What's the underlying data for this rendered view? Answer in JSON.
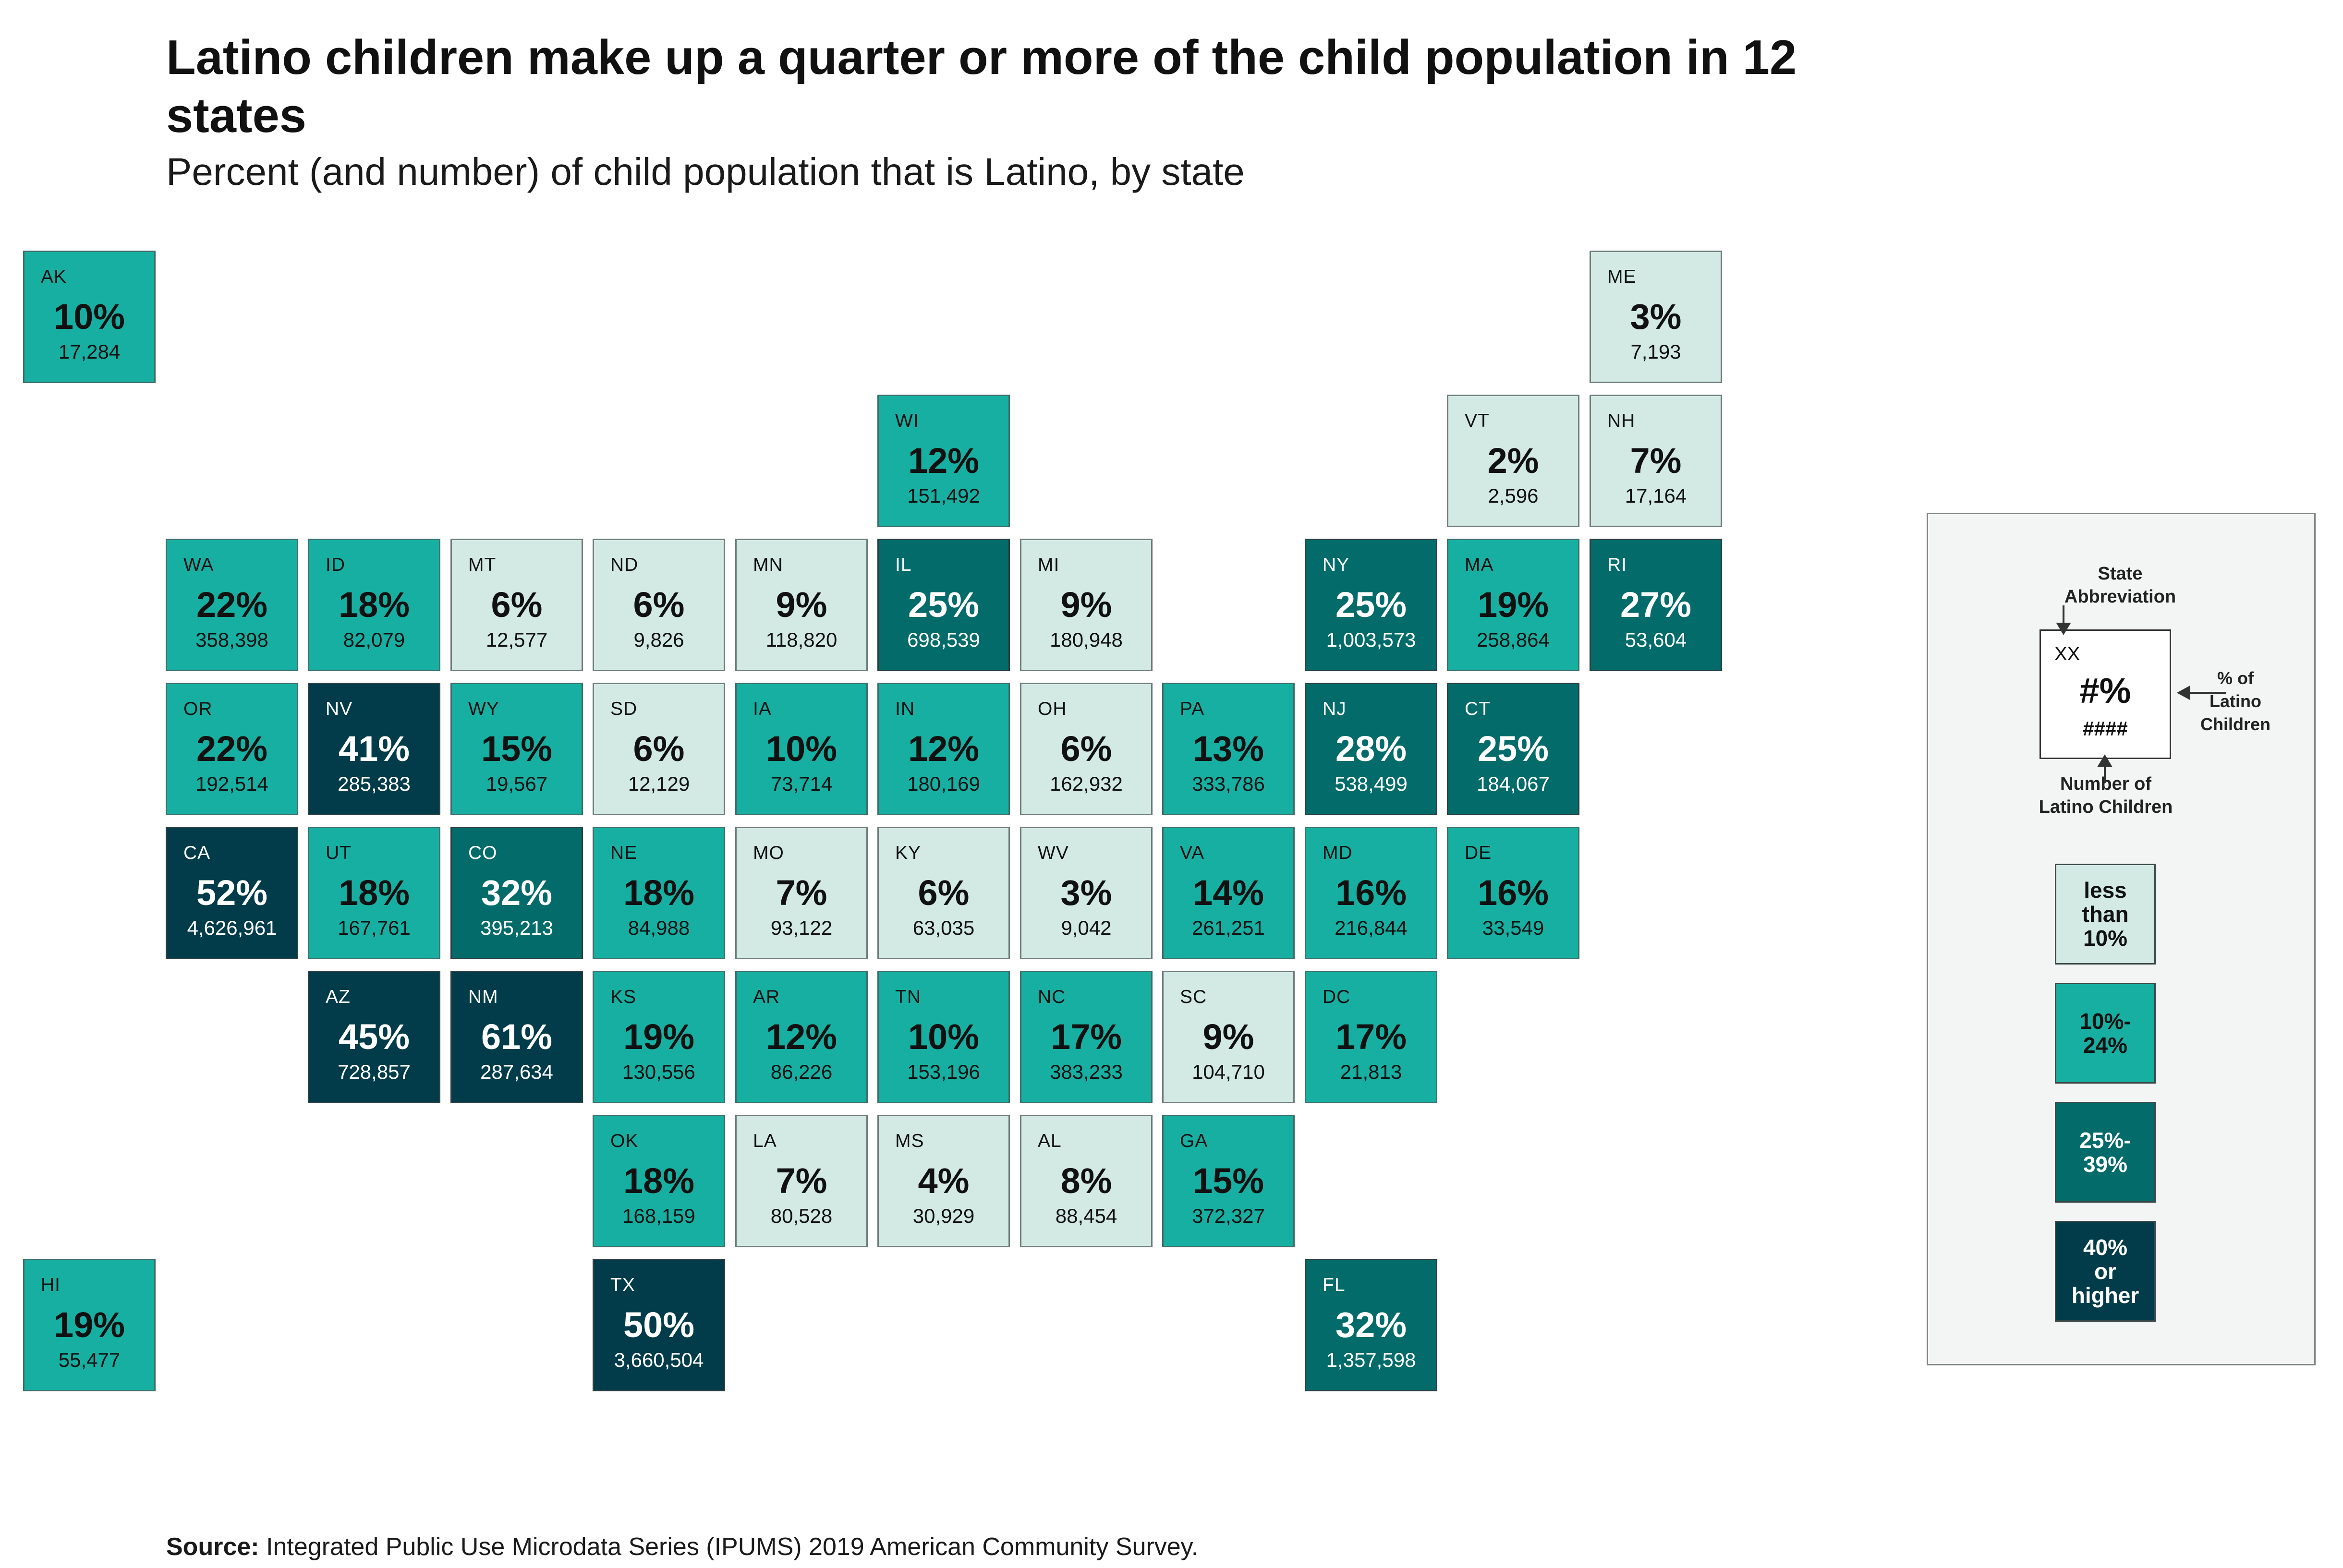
{
  "title": "Latino children make up a quarter or more of the child population in 12 states",
  "subtitle": "Percent (and number) of child population that is Latino, by state",
  "source": {
    "label": "Source:",
    "text": "Integrated Public Use Microdata Series (IPUMS) 2019 American Community Survey."
  },
  "colors": {
    "lt10": "#d3e9e4",
    "b10_24": "#17afa1",
    "b25_39": "#036b6a",
    "ge40": "#023c4a"
  },
  "map_data": {
    "type": "tile_grid_map",
    "states": [
      {
        "abbr": "AK",
        "pct": "10%",
        "num": "17,284",
        "pct_value": 10,
        "count": 17284,
        "row": 0,
        "col": 0
      },
      {
        "abbr": "ME",
        "pct": "3%",
        "num": "7,193",
        "pct_value": 3,
        "count": 7193,
        "row": 0,
        "col": 11
      },
      {
        "abbr": "WI",
        "pct": "12%",
        "num": "151,492",
        "pct_value": 12,
        "count": 151492,
        "row": 1,
        "col": 6
      },
      {
        "abbr": "VT",
        "pct": "2%",
        "num": "2,596",
        "pct_value": 2,
        "count": 2596,
        "row": 1,
        "col": 10
      },
      {
        "abbr": "NH",
        "pct": "7%",
        "num": "17,164",
        "pct_value": 7,
        "count": 17164,
        "row": 1,
        "col": 11
      },
      {
        "abbr": "WA",
        "pct": "22%",
        "num": "358,398",
        "pct_value": 22,
        "count": 358398,
        "row": 2,
        "col": 1
      },
      {
        "abbr": "ID",
        "pct": "18%",
        "num": "82,079",
        "pct_value": 18,
        "count": 82079,
        "row": 2,
        "col": 2
      },
      {
        "abbr": "MT",
        "pct": "6%",
        "num": "12,577",
        "pct_value": 6,
        "count": 12577,
        "row": 2,
        "col": 3
      },
      {
        "abbr": "ND",
        "pct": "6%",
        "num": "9,826",
        "pct_value": 6,
        "count": 9826,
        "row": 2,
        "col": 4
      },
      {
        "abbr": "MN",
        "pct": "9%",
        "num": "118,820",
        "pct_value": 9,
        "count": 118820,
        "row": 2,
        "col": 5
      },
      {
        "abbr": "IL",
        "pct": "25%",
        "num": "698,539",
        "pct_value": 25,
        "count": 698539,
        "row": 2,
        "col": 6
      },
      {
        "abbr": "MI",
        "pct": "9%",
        "num": "180,948",
        "pct_value": 9,
        "count": 180948,
        "row": 2,
        "col": 7
      },
      {
        "abbr": "NY",
        "pct": "25%",
        "num": "1,003,573",
        "pct_value": 25,
        "count": 1003573,
        "row": 2,
        "col": 9
      },
      {
        "abbr": "MA",
        "pct": "19%",
        "num": "258,864",
        "pct_value": 19,
        "count": 258864,
        "row": 2,
        "col": 10
      },
      {
        "abbr": "RI",
        "pct": "27%",
        "num": "53,604",
        "pct_value": 27,
        "count": 53604,
        "row": 2,
        "col": 11
      },
      {
        "abbr": "OR",
        "pct": "22%",
        "num": "192,514",
        "pct_value": 22,
        "count": 192514,
        "row": 3,
        "col": 1
      },
      {
        "abbr": "NV",
        "pct": "41%",
        "num": "285,383",
        "pct_value": 41,
        "count": 285383,
        "row": 3,
        "col": 2
      },
      {
        "abbr": "WY",
        "pct": "15%",
        "num": "19,567",
        "pct_value": 15,
        "count": 19567,
        "row": 3,
        "col": 3
      },
      {
        "abbr": "SD",
        "pct": "6%",
        "num": "12,129",
        "pct_value": 6,
        "count": 12129,
        "row": 3,
        "col": 4
      },
      {
        "abbr": "IA",
        "pct": "10%",
        "num": "73,714",
        "pct_value": 10,
        "count": 73714,
        "row": 3,
        "col": 5
      },
      {
        "abbr": "IN",
        "pct": "12%",
        "num": "180,169",
        "pct_value": 12,
        "count": 180169,
        "row": 3,
        "col": 6
      },
      {
        "abbr": "OH",
        "pct": "6%",
        "num": "162,932",
        "pct_value": 6,
        "count": 162932,
        "row": 3,
        "col": 7
      },
      {
        "abbr": "PA",
        "pct": "13%",
        "num": "333,786",
        "pct_value": 13,
        "count": 333786,
        "row": 3,
        "col": 8
      },
      {
        "abbr": "NJ",
        "pct": "28%",
        "num": "538,499",
        "pct_value": 28,
        "count": 538499,
        "row": 3,
        "col": 9
      },
      {
        "abbr": "CT",
        "pct": "25%",
        "num": "184,067",
        "pct_value": 25,
        "count": 184067,
        "row": 3,
        "col": 10
      },
      {
        "abbr": "CA",
        "pct": "52%",
        "num": "4,626,961",
        "pct_value": 52,
        "count": 4626961,
        "row": 4,
        "col": 1
      },
      {
        "abbr": "UT",
        "pct": "18%",
        "num": "167,761",
        "pct_value": 18,
        "count": 167761,
        "row": 4,
        "col": 2
      },
      {
        "abbr": "CO",
        "pct": "32%",
        "num": "395,213",
        "pct_value": 32,
        "count": 395213,
        "row": 4,
        "col": 3
      },
      {
        "abbr": "NE",
        "pct": "18%",
        "num": "84,988",
        "pct_value": 18,
        "count": 84988,
        "row": 4,
        "col": 4
      },
      {
        "abbr": "MO",
        "pct": "7%",
        "num": "93,122",
        "pct_value": 7,
        "count": 93122,
        "row": 4,
        "col": 5
      },
      {
        "abbr": "KY",
        "pct": "6%",
        "num": "63,035",
        "pct_value": 6,
        "count": 63035,
        "row": 4,
        "col": 6
      },
      {
        "abbr": "WV",
        "pct": "3%",
        "num": "9,042",
        "pct_value": 3,
        "count": 9042,
        "row": 4,
        "col": 7
      },
      {
        "abbr": "VA",
        "pct": "14%",
        "num": "261,251",
        "pct_value": 14,
        "count": 261251,
        "row": 4,
        "col": 8
      },
      {
        "abbr": "MD",
        "pct": "16%",
        "num": "216,844",
        "pct_value": 16,
        "count": 216844,
        "row": 4,
        "col": 9
      },
      {
        "abbr": "DE",
        "pct": "16%",
        "num": "33,549",
        "pct_value": 16,
        "count": 33549,
        "row": 4,
        "col": 10
      },
      {
        "abbr": "AZ",
        "pct": "45%",
        "num": "728,857",
        "pct_value": 45,
        "count": 728857,
        "row": 5,
        "col": 2
      },
      {
        "abbr": "NM",
        "pct": "61%",
        "num": "287,634",
        "pct_value": 61,
        "count": 287634,
        "row": 5,
        "col": 3
      },
      {
        "abbr": "KS",
        "pct": "19%",
        "num": "130,556",
        "pct_value": 19,
        "count": 130556,
        "row": 5,
        "col": 4
      },
      {
        "abbr": "AR",
        "pct": "12%",
        "num": "86,226",
        "pct_value": 12,
        "count": 86226,
        "row": 5,
        "col": 5
      },
      {
        "abbr": "TN",
        "pct": "10%",
        "num": "153,196",
        "pct_value": 10,
        "count": 153196,
        "row": 5,
        "col": 6
      },
      {
        "abbr": "NC",
        "pct": "17%",
        "num": "383,233",
        "pct_value": 17,
        "count": 383233,
        "row": 5,
        "col": 7
      },
      {
        "abbr": "SC",
        "pct": "9%",
        "num": "104,710",
        "pct_value": 9,
        "count": 104710,
        "row": 5,
        "col": 8
      },
      {
        "abbr": "DC",
        "pct": "17%",
        "num": "21,813",
        "pct_value": 17,
        "count": 21813,
        "row": 5,
        "col": 9
      },
      {
        "abbr": "OK",
        "pct": "18%",
        "num": "168,159",
        "pct_value": 18,
        "count": 168159,
        "row": 6,
        "col": 4
      },
      {
        "abbr": "LA",
        "pct": "7%",
        "num": "80,528",
        "pct_value": 7,
        "count": 80528,
        "row": 6,
        "col": 5
      },
      {
        "abbr": "MS",
        "pct": "4%",
        "num": "30,929",
        "pct_value": 4,
        "count": 30929,
        "row": 6,
        "col": 6
      },
      {
        "abbr": "AL",
        "pct": "8%",
        "num": "88,454",
        "pct_value": 8,
        "count": 88454,
        "row": 6,
        "col": 7
      },
      {
        "abbr": "GA",
        "pct": "15%",
        "num": "372,327",
        "pct_value": 15,
        "count": 372327,
        "row": 6,
        "col": 8
      },
      {
        "abbr": "HI",
        "pct": "19%",
        "num": "55,477",
        "pct_value": 19,
        "count": 55477,
        "row": 7,
        "col": 0
      },
      {
        "abbr": "TX",
        "pct": "50%",
        "num": "3,660,504",
        "pct_value": 50,
        "count": 3660504,
        "row": 7,
        "col": 4
      },
      {
        "abbr": "FL",
        "pct": "32%",
        "num": "1,357,598",
        "pct_value": 32,
        "count": 1357598,
        "row": 7,
        "col": 9
      }
    ]
  },
  "legend": {
    "state_abbr_label": "State\nAbbreviation",
    "pct_label": "% of\nLatino\nChildren",
    "number_label": "Number of\nLatino Children",
    "key_abbr": "XX",
    "key_pct": "#%",
    "key_num": "####",
    "bins": [
      {
        "label": "less\nthan\n10%",
        "color_key": "lt10",
        "text_color": "#111111"
      },
      {
        "label": "10%-\n24%",
        "color_key": "b10_24",
        "text_color": "#111111"
      },
      {
        "label": "25%-\n39%",
        "color_key": "b25_39",
        "text_color": "#ffffff"
      },
      {
        "label": "40%\nor\nhigher",
        "color_key": "ge40",
        "text_color": "#ffffff"
      }
    ]
  }
}
